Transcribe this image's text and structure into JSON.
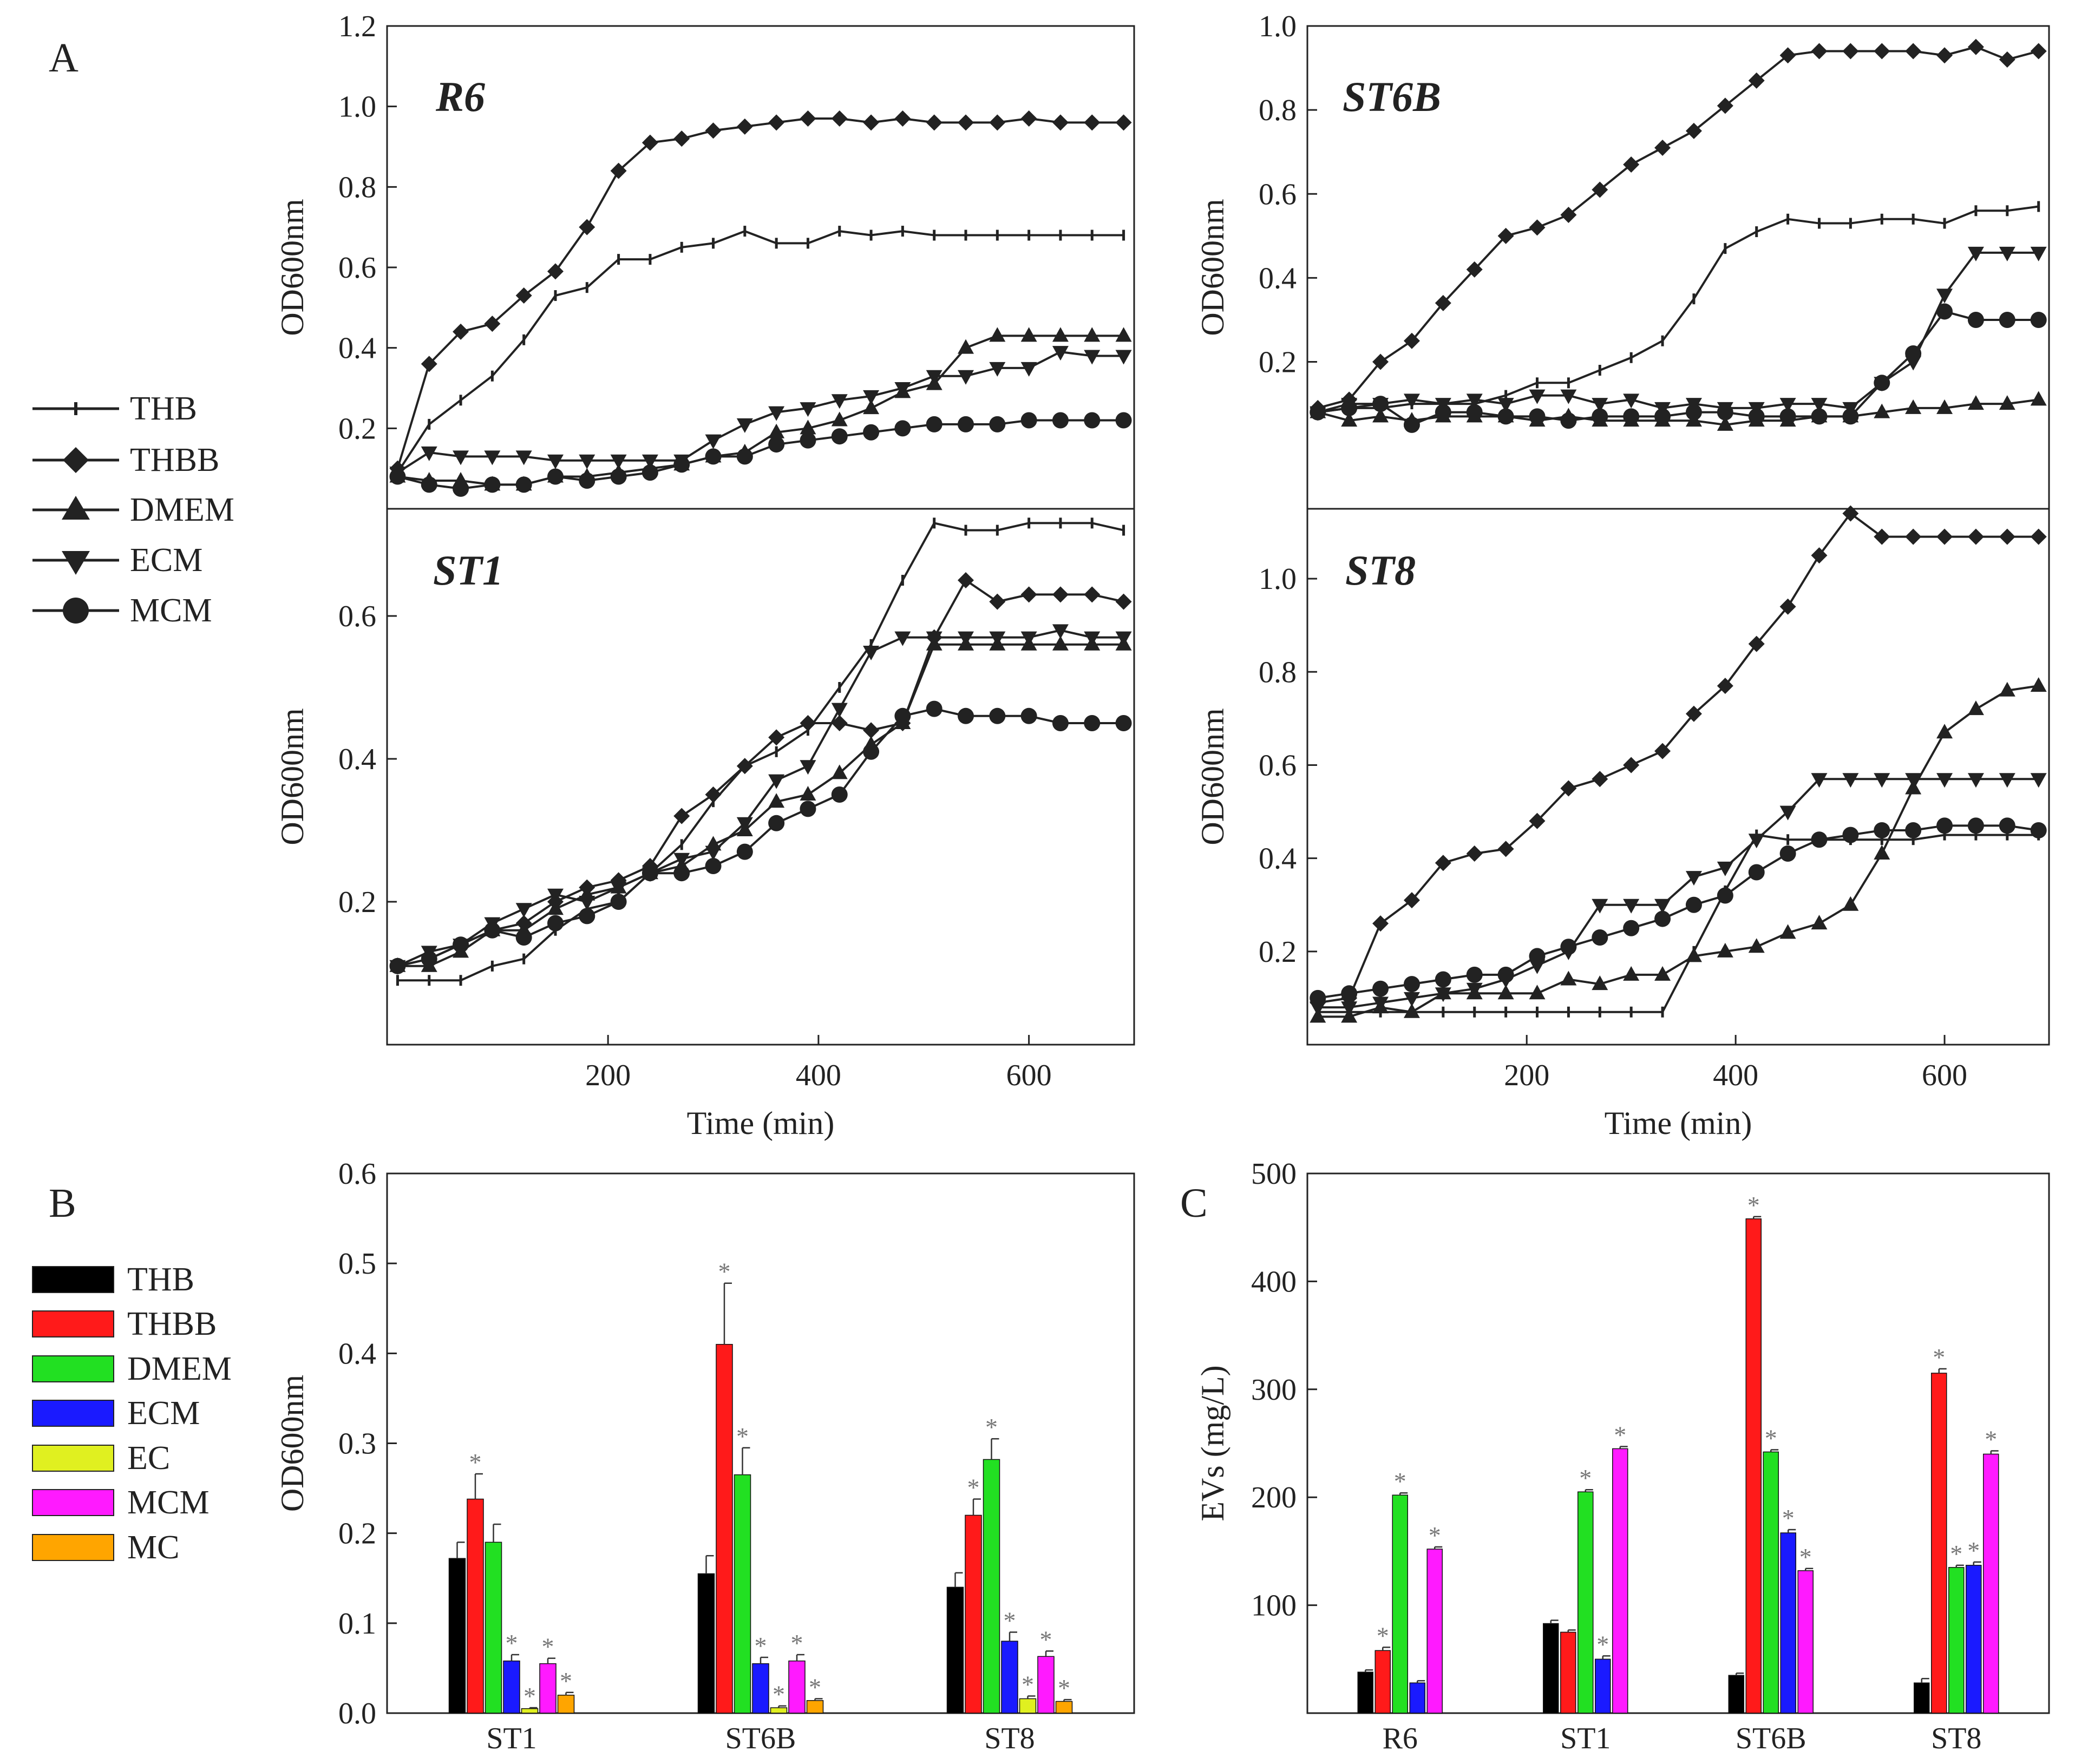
{
  "panel_labels": {
    "a": "A",
    "b": "B",
    "c": "C"
  },
  "legend_a": [
    {
      "label": "THB",
      "marker": "plus"
    },
    {
      "label": "THBB",
      "marker": "diamond"
    },
    {
      "label": "DMEM",
      "marker": "triangle-up"
    },
    {
      "label": "ECM",
      "marker": "triangle-down"
    },
    {
      "label": "MCM",
      "marker": "circle"
    }
  ],
  "legend_b": [
    {
      "label": "THB",
      "color": "#000000"
    },
    {
      "label": "THBB",
      "color": "#ff1a1a"
    },
    {
      "label": "DMEM",
      "color": "#22e022"
    },
    {
      "label": "ECM",
      "color": "#1a1aff"
    },
    {
      "label": "EC",
      "color": "#e0f020"
    },
    {
      "label": "MCM",
      "color": "#ff1aff"
    },
    {
      "label": "MC",
      "color": "#ffa500"
    }
  ],
  "chart_data": [
    {
      "type": "line",
      "title": "R6",
      "xlabel": "",
      "ylabel": "OD600nm",
      "xlim": [
        -10,
        700
      ],
      "ylim": [
        0,
        1.2
      ],
      "xticks": [],
      "yticks": [
        "0.2",
        "0.4",
        "0.6",
        "0.8",
        "1.0",
        "1.2"
      ],
      "x": [
        0,
        30,
        60,
        90,
        120,
        150,
        180,
        210,
        240,
        270,
        300,
        330,
        360,
        390,
        420,
        450,
        480,
        510,
        540,
        570,
        600,
        630,
        660,
        690
      ],
      "series": [
        {
          "name": "THB",
          "values": [
            0.09,
            0.21,
            0.27,
            0.33,
            0.42,
            0.53,
            0.55,
            0.62,
            0.62,
            0.65,
            0.66,
            0.69,
            0.66,
            0.66,
            0.69,
            0.68,
            0.69,
            0.68,
            0.68,
            0.68,
            0.68,
            0.68,
            0.68,
            0.68
          ]
        },
        {
          "name": "THBB",
          "values": [
            0.1,
            0.36,
            0.44,
            0.46,
            0.53,
            0.59,
            0.7,
            0.84,
            0.91,
            0.92,
            0.94,
            0.95,
            0.96,
            0.97,
            0.97,
            0.96,
            0.97,
            0.96,
            0.96,
            0.96,
            0.97,
            0.96,
            0.96,
            0.96
          ]
        },
        {
          "name": "DMEM",
          "values": [
            0.08,
            0.07,
            0.07,
            0.06,
            0.06,
            0.08,
            0.08,
            0.09,
            0.1,
            0.11,
            0.13,
            0.14,
            0.19,
            0.2,
            0.22,
            0.25,
            0.29,
            0.31,
            0.4,
            0.43,
            0.43,
            0.43,
            0.43,
            0.43
          ]
        },
        {
          "name": "ECM",
          "values": [
            0.09,
            0.14,
            0.13,
            0.13,
            0.13,
            0.12,
            0.12,
            0.12,
            0.12,
            0.12,
            0.17,
            0.21,
            0.24,
            0.25,
            0.27,
            0.28,
            0.3,
            0.33,
            0.33,
            0.35,
            0.35,
            0.39,
            0.38,
            0.38
          ]
        },
        {
          "name": "MCM",
          "values": [
            0.08,
            0.06,
            0.05,
            0.06,
            0.06,
            0.08,
            0.07,
            0.08,
            0.09,
            0.11,
            0.13,
            0.13,
            0.16,
            0.17,
            0.18,
            0.19,
            0.2,
            0.21,
            0.21,
            0.21,
            0.22,
            0.22,
            0.22,
            0.22
          ]
        }
      ]
    },
    {
      "type": "line",
      "title": "ST6B",
      "xlabel": "",
      "ylabel": "OD600nm",
      "xlim": [
        -10,
        700
      ],
      "ylim": [
        -0.15,
        1.0
      ],
      "xticks": [],
      "yticks": [
        "0.2",
        "0.4",
        "0.6",
        "0.8",
        "1.0"
      ],
      "x": [
        0,
        30,
        60,
        90,
        120,
        150,
        180,
        210,
        240,
        270,
        300,
        330,
        360,
        390,
        420,
        450,
        480,
        510,
        540,
        570,
        600,
        630,
        660,
        690
      ],
      "series": [
        {
          "name": "THB",
          "values": [
            0.08,
            0.09,
            0.09,
            0.1,
            0.1,
            0.1,
            0.12,
            0.15,
            0.15,
            0.18,
            0.21,
            0.25,
            0.35,
            0.47,
            0.51,
            0.54,
            0.53,
            0.53,
            0.54,
            0.54,
            0.53,
            0.56,
            0.56,
            0.57
          ]
        },
        {
          "name": "THBB",
          "values": [
            0.09,
            0.11,
            0.2,
            0.25,
            0.34,
            0.42,
            0.5,
            0.52,
            0.55,
            0.61,
            0.67,
            0.71,
            0.75,
            0.81,
            0.87,
            0.93,
            0.94,
            0.94,
            0.94,
            0.94,
            0.93,
            0.95,
            0.92,
            0.94
          ]
        },
        {
          "name": "DMEM",
          "values": [
            0.08,
            0.06,
            0.07,
            0.06,
            0.07,
            0.07,
            0.07,
            0.06,
            0.07,
            0.06,
            0.06,
            0.06,
            0.06,
            0.05,
            0.06,
            0.06,
            0.07,
            0.07,
            0.08,
            0.09,
            0.09,
            0.1,
            0.1,
            0.11
          ]
        },
        {
          "name": "ECM",
          "values": [
            0.08,
            0.1,
            0.1,
            0.11,
            0.1,
            0.11,
            0.1,
            0.12,
            0.12,
            0.1,
            0.11,
            0.09,
            0.1,
            0.09,
            0.09,
            0.1,
            0.1,
            0.09,
            0.15,
            0.2,
            0.36,
            0.46,
            0.46,
            0.46
          ]
        },
        {
          "name": "MCM",
          "values": [
            0.08,
            0.09,
            0.1,
            0.05,
            0.08,
            0.08,
            0.07,
            0.07,
            0.06,
            0.07,
            0.07,
            0.07,
            0.08,
            0.08,
            0.07,
            0.07,
            0.07,
            0.07,
            0.15,
            0.22,
            0.32,
            0.3,
            0.3,
            0.3
          ]
        }
      ]
    },
    {
      "type": "line",
      "title": "ST1",
      "xlabel": "Time (min)",
      "ylabel": "OD600nm",
      "xlim": [
        -10,
        700
      ],
      "ylim": [
        0.0,
        0.75
      ],
      "xticks": [
        "200",
        "400",
        "600"
      ],
      "yticks": [
        "0.2",
        "0.4",
        "0.6"
      ],
      "x": [
        0,
        30,
        60,
        90,
        120,
        150,
        180,
        210,
        240,
        270,
        300,
        330,
        360,
        390,
        420,
        450,
        480,
        510,
        540,
        570,
        600,
        630,
        660,
        690
      ],
      "series": [
        {
          "name": "THB",
          "values": [
            0.09,
            0.09,
            0.09,
            0.11,
            0.12,
            0.16,
            0.19,
            0.2,
            0.24,
            0.28,
            0.34,
            0.39,
            0.41,
            0.44,
            0.5,
            0.56,
            0.65,
            0.73,
            0.72,
            0.72,
            0.73,
            0.73,
            0.73,
            0.72
          ]
        },
        {
          "name": "THBB",
          "values": [
            0.11,
            0.12,
            0.14,
            0.16,
            0.17,
            0.2,
            0.22,
            0.23,
            0.25,
            0.32,
            0.35,
            0.39,
            0.43,
            0.45,
            0.45,
            0.44,
            0.45,
            0.57,
            0.65,
            0.62,
            0.63,
            0.63,
            0.63,
            0.62
          ]
        },
        {
          "name": "DMEM",
          "values": [
            0.11,
            0.11,
            0.13,
            0.16,
            0.16,
            0.19,
            0.21,
            0.22,
            0.24,
            0.25,
            0.28,
            0.3,
            0.34,
            0.35,
            0.38,
            0.42,
            0.45,
            0.56,
            0.56,
            0.56,
            0.56,
            0.56,
            0.56,
            0.56
          ]
        },
        {
          "name": "ECM",
          "values": [
            0.11,
            0.13,
            0.14,
            0.17,
            0.19,
            0.21,
            0.2,
            0.22,
            0.24,
            0.26,
            0.27,
            0.31,
            0.37,
            0.39,
            0.47,
            0.55,
            0.57,
            0.57,
            0.57,
            0.57,
            0.57,
            0.58,
            0.57,
            0.57
          ]
        },
        {
          "name": "MCM",
          "values": [
            0.11,
            0.12,
            0.14,
            0.16,
            0.15,
            0.17,
            0.18,
            0.2,
            0.24,
            0.24,
            0.25,
            0.27,
            0.31,
            0.33,
            0.35,
            0.41,
            0.46,
            0.47,
            0.46,
            0.46,
            0.46,
            0.45,
            0.45,
            0.45
          ]
        }
      ]
    },
    {
      "type": "line",
      "title": "ST8",
      "xlabel": "Time (min)",
      "ylabel": "OD600nm",
      "xlim": [
        -10,
        700
      ],
      "ylim": [
        0.0,
        1.15
      ],
      "xticks": [
        "200",
        "400",
        "600"
      ],
      "yticks": [
        "0.2",
        "0.4",
        "0.6",
        "0.8",
        "1.0"
      ],
      "x": [
        0,
        30,
        60,
        90,
        120,
        150,
        180,
        210,
        240,
        270,
        300,
        330,
        360,
        390,
        420,
        450,
        480,
        510,
        540,
        570,
        600,
        630,
        660,
        690
      ],
      "series": [
        {
          "name": "THB",
          "values": [
            0.07,
            0.07,
            0.07,
            0.07,
            0.07,
            0.07,
            0.07,
            0.07,
            0.07,
            0.07,
            0.07,
            0.07,
            0.2,
            0.33,
            0.45,
            0.44,
            0.44,
            0.44,
            0.44,
            0.44,
            0.45,
            0.45,
            0.45,
            0.45
          ]
        },
        {
          "name": "THBB",
          "values": [
            0.09,
            0.1,
            0.26,
            0.31,
            0.39,
            0.41,
            0.42,
            0.48,
            0.55,
            0.57,
            0.6,
            0.63,
            0.71,
            0.77,
            0.86,
            0.94,
            1.05,
            1.14,
            1.09,
            1.09,
            1.09,
            1.09,
            1.09,
            1.09
          ]
        },
        {
          "name": "DMEM",
          "values": [
            0.06,
            0.06,
            0.08,
            0.07,
            0.11,
            0.11,
            0.11,
            0.11,
            0.14,
            0.13,
            0.15,
            0.15,
            0.19,
            0.2,
            0.21,
            0.24,
            0.26,
            0.3,
            0.41,
            0.55,
            0.67,
            0.72,
            0.76,
            0.77
          ]
        },
        {
          "name": "ECM",
          "values": [
            0.08,
            0.08,
            0.09,
            0.1,
            0.11,
            0.12,
            0.14,
            0.17,
            0.2,
            0.3,
            0.3,
            0.3,
            0.36,
            0.38,
            0.44,
            0.5,
            0.57,
            0.57,
            0.57,
            0.57,
            0.57,
            0.57,
            0.57,
            0.57
          ]
        },
        {
          "name": "MCM",
          "values": [
            0.1,
            0.11,
            0.12,
            0.13,
            0.14,
            0.15,
            0.15,
            0.19,
            0.21,
            0.23,
            0.25,
            0.27,
            0.3,
            0.32,
            0.37,
            0.41,
            0.44,
            0.45,
            0.46,
            0.46,
            0.47,
            0.47,
            0.47,
            0.46
          ]
        }
      ]
    },
    {
      "type": "bar",
      "title": "",
      "xlabel": "",
      "ylabel": "OD600nm",
      "ylim": [
        0,
        0.6
      ],
      "yticks": [
        "0.0",
        "0.1",
        "0.2",
        "0.3",
        "0.4",
        "0.5",
        "0.6"
      ],
      "categories": [
        "ST1",
        "ST6B",
        "ST8"
      ],
      "series": [
        {
          "name": "THB",
          "color": "#000000",
          "values": [
            0.172,
            0.155,
            0.14
          ],
          "errors": [
            0.018,
            0.02,
            0.016
          ],
          "sig": [
            false,
            false,
            false
          ]
        },
        {
          "name": "THBB",
          "color": "#ff1a1a",
          "values": [
            0.238,
            0.41,
            0.22
          ],
          "errors": [
            0.028,
            0.068,
            0.018
          ],
          "sig": [
            true,
            true,
            true
          ]
        },
        {
          "name": "DMEM",
          "color": "#22e022",
          "values": [
            0.19,
            0.265,
            0.282
          ],
          "errors": [
            0.02,
            0.03,
            0.023
          ],
          "sig": [
            false,
            true,
            true
          ]
        },
        {
          "name": "ECM",
          "color": "#1a1aff",
          "values": [
            0.058,
            0.055,
            0.08
          ],
          "errors": [
            0.007,
            0.007,
            0.01
          ],
          "sig": [
            true,
            true,
            true
          ]
        },
        {
          "name": "EC",
          "color": "#e0f020",
          "values": [
            0.005,
            0.006,
            0.016
          ],
          "errors": [
            0.001,
            0.002,
            0.003
          ],
          "sig": [
            true,
            true,
            true
          ]
        },
        {
          "name": "MCM",
          "color": "#ff1aff",
          "values": [
            0.055,
            0.058,
            0.063
          ],
          "errors": [
            0.006,
            0.007,
            0.006
          ],
          "sig": [
            true,
            true,
            true
          ]
        },
        {
          "name": "MC",
          "color": "#ffa500",
          "values": [
            0.02,
            0.014,
            0.013
          ],
          "errors": [
            0.003,
            0.002,
            0.002
          ],
          "sig": [
            true,
            true,
            true
          ]
        }
      ]
    },
    {
      "type": "bar",
      "title": "",
      "xlabel": "",
      "ylabel": "EVs (mg/L)",
      "ylim": [
        0,
        500
      ],
      "yticks": [
        "100",
        "200",
        "300",
        "400",
        "500"
      ],
      "categories": [
        "R6",
        "ST1",
        "ST6B",
        "ST8"
      ],
      "series": [
        {
          "name": "THB",
          "color": "#000000",
          "values": [
            38,
            83,
            35,
            28
          ],
          "errors": [
            2,
            3,
            2,
            4
          ],
          "sig": [
            false,
            false,
            false,
            false
          ]
        },
        {
          "name": "THBB",
          "color": "#ff1a1a",
          "values": [
            58,
            75,
            458,
            315
          ],
          "errors": [
            3,
            2,
            2,
            4
          ],
          "sig": [
            true,
            false,
            true,
            true
          ]
        },
        {
          "name": "DMEM",
          "color": "#22e022",
          "values": [
            202,
            205,
            242,
            135
          ],
          "errors": [
            2,
            2,
            2,
            2
          ],
          "sig": [
            true,
            true,
            true,
            true
          ]
        },
        {
          "name": "ECM",
          "color": "#1a1aff",
          "values": [
            28,
            50,
            167,
            137
          ],
          "errors": [
            2,
            3,
            3,
            3
          ],
          "sig": [
            false,
            true,
            true,
            true
          ]
        },
        {
          "name": "MCM",
          "color": "#ff1aff",
          "values": [
            152,
            245,
            132,
            240
          ],
          "errors": [
            2,
            2,
            2,
            3
          ],
          "sig": [
            true,
            true,
            true,
            true
          ]
        }
      ]
    }
  ]
}
